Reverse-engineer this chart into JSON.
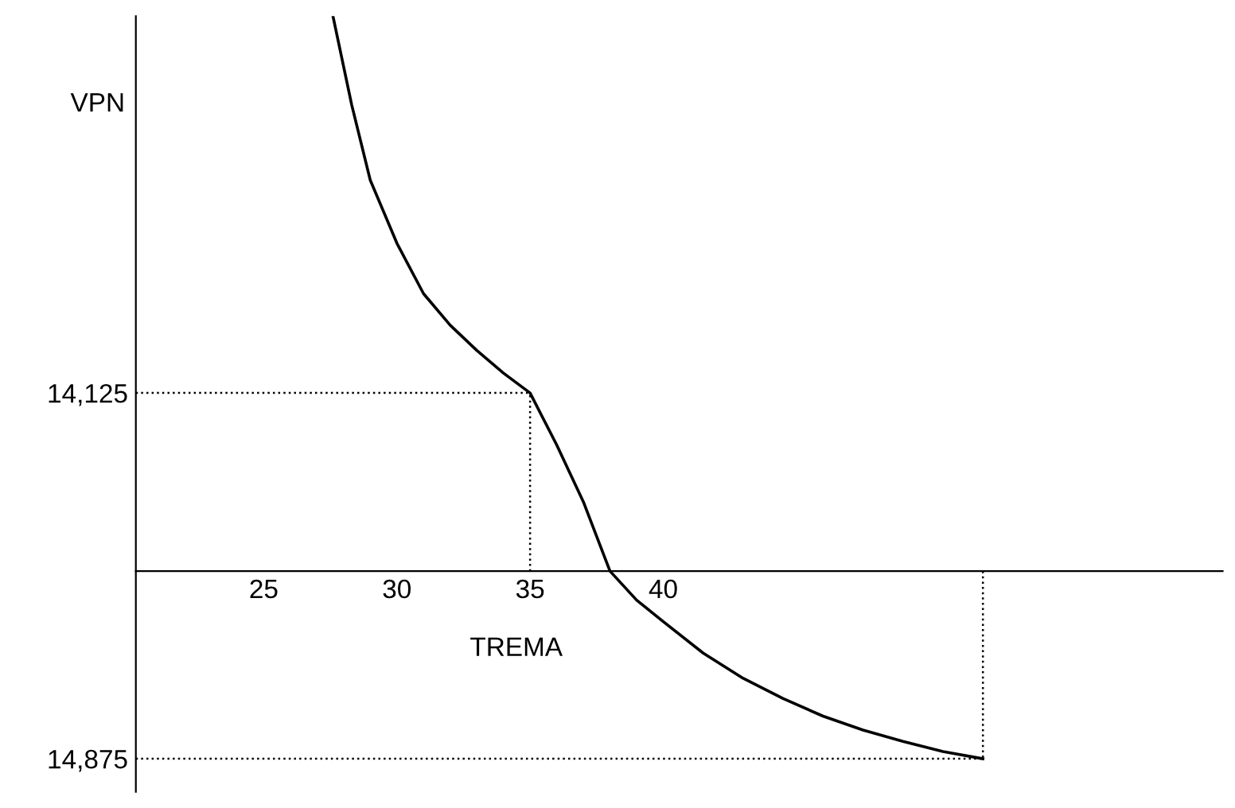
{
  "chart_data": {
    "type": "line",
    "ylabel": "VPN",
    "xlabel": "TREMA",
    "x": [
      27.6,
      28.3,
      29,
      30,
      31,
      32,
      33,
      34,
      35,
      36,
      37,
      38,
      39,
      40,
      41.5,
      43,
      44.5,
      46,
      47.5,
      49,
      50.5,
      52
    ],
    "values": [
      44000,
      37000,
      31000,
      26000,
      22000,
      19500,
      17500,
      15700,
      14125,
      10000,
      5500,
      0,
      -2300,
      -4000,
      -6500,
      -8500,
      -10100,
      -11500,
      -12600,
      -13500,
      -14300,
      -14875
    ],
    "color": "#000000",
    "xlim": [
      20.2,
      61
    ],
    "ylim": [
      -17500,
      44000
    ],
    "xticks": [
      25,
      30,
      35,
      40
    ],
    "yticks": [
      {
        "value": 14125,
        "label": "14,125"
      },
      {
        "value": -14875,
        "label": "14,875"
      }
    ],
    "ref_lines": [
      {
        "axis": "y",
        "value": 14125,
        "line_style": "dotted"
      },
      {
        "axis": "y",
        "value": -14875,
        "line_style": "dotted"
      },
      {
        "axis": "x",
        "value": 35,
        "line_style": "dotted"
      },
      {
        "axis": "x",
        "value": 52,
        "line_style": "dotted"
      }
    ],
    "grid": false,
    "legend": false,
    "marker": "none",
    "line_style": "solid"
  }
}
